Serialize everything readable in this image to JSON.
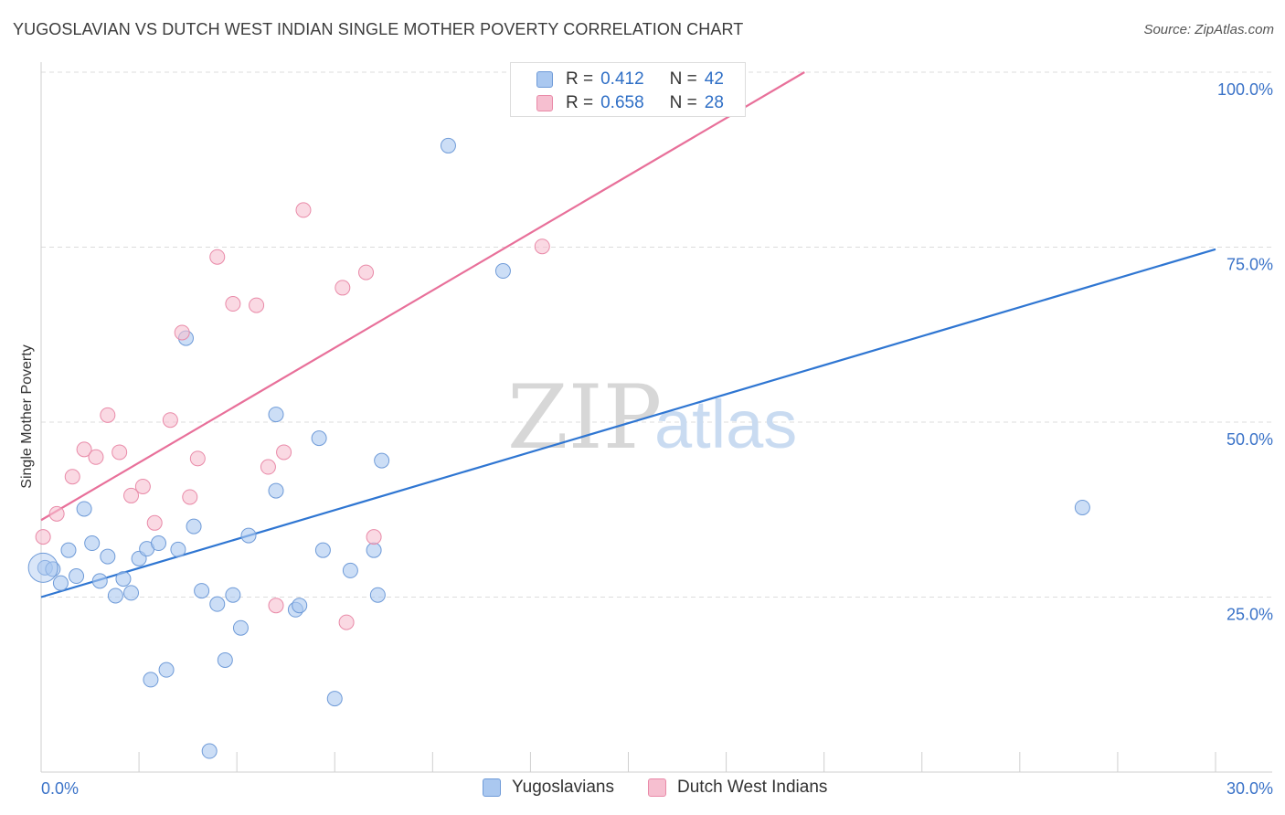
{
  "title": "YUGOSLAVIAN VS DUTCH WEST INDIAN SINGLE MOTHER POVERTY CORRELATION CHART",
  "source": "Source: ZipAtlas.com",
  "watermark": {
    "zip": "ZIP",
    "atlas": "atlas"
  },
  "legend": {
    "rows": [
      {
        "r_label": "R =",
        "r_value": "0.412",
        "n_label": "N =",
        "n_value": "42"
      },
      {
        "r_label": "R =",
        "r_value": "0.658",
        "n_label": "N =",
        "n_value": "28"
      }
    ]
  },
  "bottom_legend": [
    "Yugoslavians",
    "Dutch West Indians"
  ],
  "colors": {
    "blue_fill": "#aac8f0",
    "blue_stroke": "#6f9bd8",
    "blue_line": "#2f76d2",
    "pink_fill": "#f6bfd0",
    "pink_stroke": "#e98aa8",
    "pink_line": "#e8709a",
    "grid": "#dcdcdc",
    "axis_text": "#3b73c8"
  },
  "chart_data": {
    "type": "scatter",
    "title": "YUGOSLAVIAN VS DUTCH WEST INDIAN SINGLE MOTHER POVERTY CORRELATION CHART",
    "xlabel": "",
    "ylabel": "Single Mother Poverty",
    "xlim": [
      0,
      30
    ],
    "ylim": [
      0,
      100
    ],
    "x_tick_labels": [
      "0.0%",
      "30.0%"
    ],
    "y_tick_labels": [
      "25.0%",
      "50.0%",
      "75.0%",
      "100.0%"
    ],
    "y_ticks": [
      25,
      50,
      75,
      100
    ],
    "grid": true,
    "legend_position": "top-center",
    "series": [
      {
        "name": "Yugoslavians",
        "r": 0.412,
        "n": 42,
        "trend": {
          "x": [
            0,
            30
          ],
          "y": [
            25.0,
            74.7
          ]
        },
        "points": [
          [
            0.1,
            29.2
          ],
          [
            0.3,
            29.0
          ],
          [
            0.5,
            27.0
          ],
          [
            0.7,
            31.7
          ],
          [
            0.9,
            28.0
          ],
          [
            1.1,
            37.6
          ],
          [
            1.3,
            32.7
          ],
          [
            1.5,
            27.3
          ],
          [
            1.7,
            30.8
          ],
          [
            1.9,
            25.2
          ],
          [
            2.1,
            27.6
          ],
          [
            2.3,
            25.6
          ],
          [
            2.5,
            30.5
          ],
          [
            2.7,
            31.9
          ],
          [
            2.8,
            13.2
          ],
          [
            3.0,
            32.7
          ],
          [
            3.2,
            14.6
          ],
          [
            3.5,
            31.8
          ],
          [
            3.7,
            62.0
          ],
          [
            3.9,
            35.1
          ],
          [
            4.1,
            25.9
          ],
          [
            4.3,
            3.0
          ],
          [
            4.5,
            24.0
          ],
          [
            4.7,
            16.0
          ],
          [
            4.9,
            25.3
          ],
          [
            5.1,
            20.6
          ],
          [
            5.3,
            33.8
          ],
          [
            6.0,
            51.1
          ],
          [
            6.0,
            40.2
          ],
          [
            6.5,
            23.2
          ],
          [
            6.6,
            23.8
          ],
          [
            7.1,
            47.7
          ],
          [
            7.2,
            31.7
          ],
          [
            7.5,
            10.5
          ],
          [
            7.9,
            28.8
          ],
          [
            8.5,
            31.7
          ],
          [
            8.6,
            25.3
          ],
          [
            8.7,
            44.5
          ],
          [
            10.4,
            89.5
          ],
          [
            11.8,
            71.6
          ],
          [
            26.6,
            37.8
          ],
          [
            13.2,
            100.0
          ]
        ]
      },
      {
        "name": "Dutch West Indians",
        "r": 0.658,
        "n": 28,
        "trend": {
          "x": [
            0,
            19.5
          ],
          "y": [
            36.0,
            100.0
          ]
        },
        "points": [
          [
            0.05,
            33.6
          ],
          [
            0.4,
            36.9
          ],
          [
            0.8,
            42.2
          ],
          [
            1.1,
            46.1
          ],
          [
            1.4,
            45.0
          ],
          [
            1.7,
            51.0
          ],
          [
            2.0,
            45.7
          ],
          [
            2.3,
            39.5
          ],
          [
            2.6,
            40.8
          ],
          [
            2.9,
            35.6
          ],
          [
            3.3,
            50.3
          ],
          [
            3.6,
            62.8
          ],
          [
            3.8,
            39.3
          ],
          [
            4.0,
            44.8
          ],
          [
            4.5,
            73.6
          ],
          [
            4.9,
            66.9
          ],
          [
            5.5,
            66.7
          ],
          [
            5.8,
            43.6
          ],
          [
            6.0,
            23.8
          ],
          [
            6.2,
            45.7
          ],
          [
            6.7,
            80.3
          ],
          [
            7.7,
            69.2
          ],
          [
            7.8,
            21.4
          ],
          [
            8.3,
            71.4
          ],
          [
            8.5,
            33.6
          ],
          [
            12.8,
            75.1
          ],
          [
            14.2,
            100.0
          ],
          [
            15.0,
            100.0
          ]
        ]
      }
    ]
  }
}
